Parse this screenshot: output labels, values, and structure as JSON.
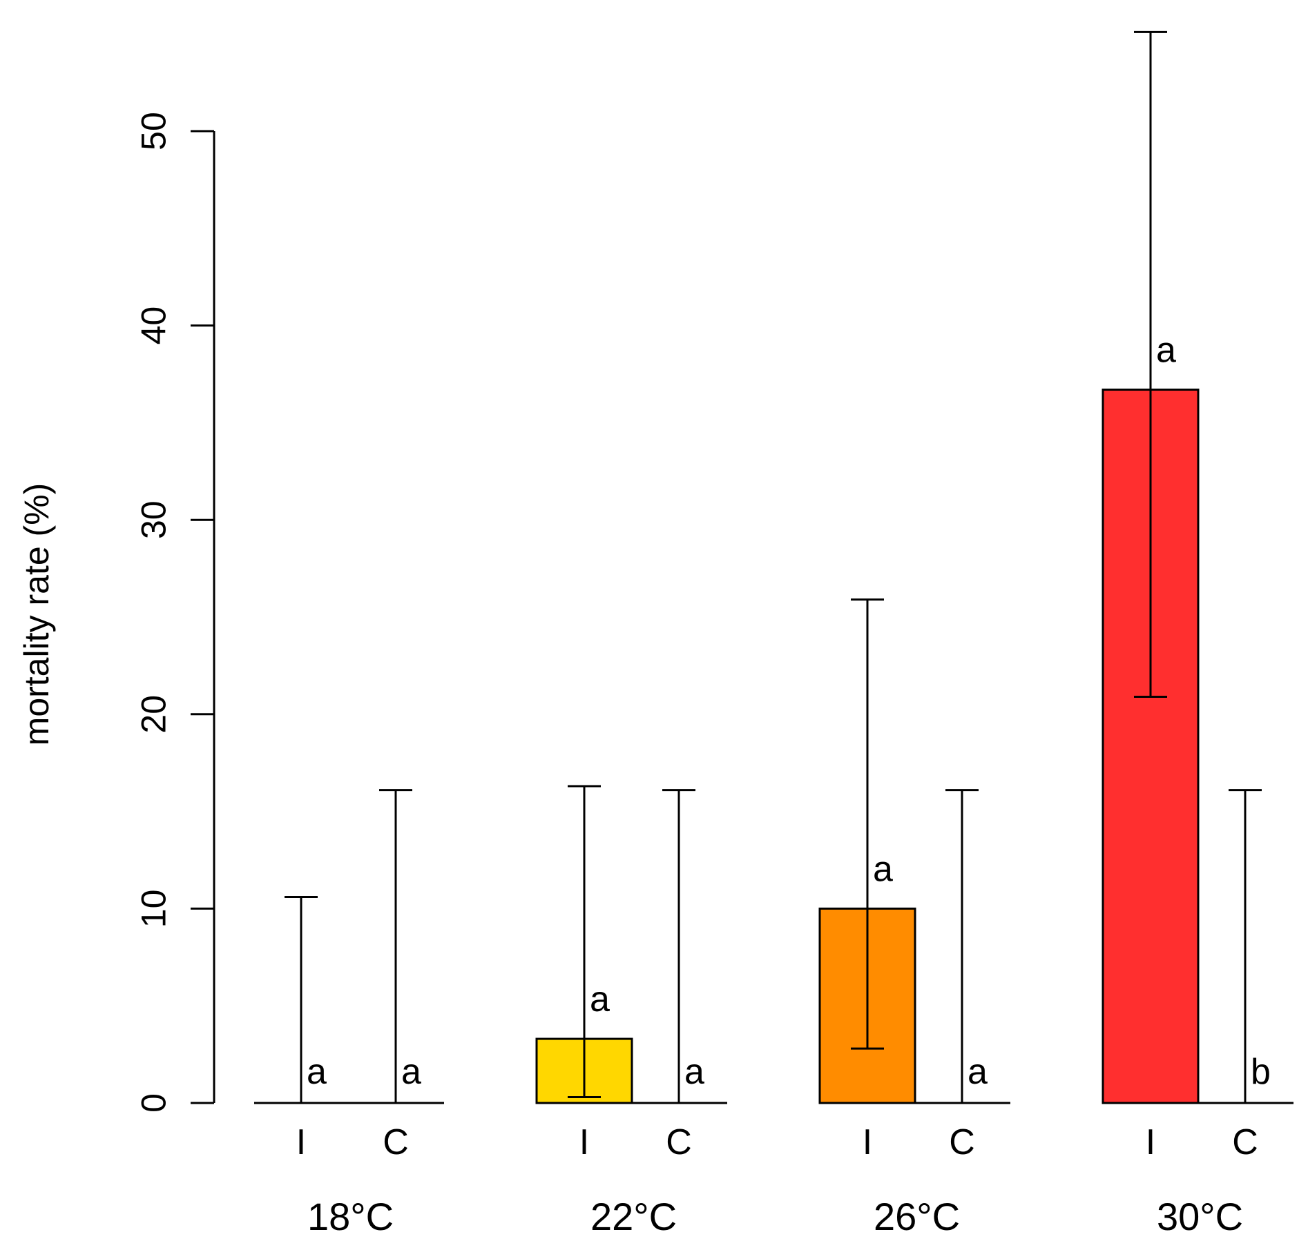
{
  "chart_data": {
    "type": "bar",
    "ylabel": "mortality rate (%)",
    "ylim": [
      0,
      50
    ],
    "y_ticks": [
      0,
      10,
      20,
      30,
      40,
      50
    ],
    "y_tick_labels": [
      "0",
      "10",
      "20",
      "30",
      "40",
      "50"
    ],
    "groups": [
      {
        "temperature": "18°C",
        "bars": [
          {
            "label": "I",
            "value": 0,
            "err_low": 0,
            "err_high": 10.6,
            "sig": "a",
            "color": "#ffffff"
          },
          {
            "label": "C",
            "value": 0,
            "err_low": 0,
            "err_high": 16.1,
            "sig": "a",
            "color": "#ffffff"
          }
        ]
      },
      {
        "temperature": "22°C",
        "bars": [
          {
            "label": "I",
            "value": 3.3,
            "err_low": 0.3,
            "err_high": 16.3,
            "sig": "a",
            "color": "#FFD700"
          },
          {
            "label": "C",
            "value": 0,
            "err_low": 0,
            "err_high": 16.1,
            "sig": "a",
            "color": "#ffffff"
          }
        ]
      },
      {
        "temperature": "26°C",
        "bars": [
          {
            "label": "I",
            "value": 10.0,
            "err_low": 2.8,
            "err_high": 25.9,
            "sig": "a",
            "color": "#FF8C00"
          },
          {
            "label": "C",
            "value": 0,
            "err_low": 0,
            "err_high": 16.1,
            "sig": "a",
            "color": "#ffffff"
          }
        ]
      },
      {
        "temperature": "30°C",
        "bars": [
          {
            "label": "I",
            "value": 36.7,
            "err_low": 20.9,
            "err_high": 55.1,
            "sig": "a",
            "color": "#FF2F2F"
          },
          {
            "label": "C",
            "value": 0,
            "err_low": 0,
            "err_high": 16.1,
            "sig": "b",
            "color": "#ffffff"
          }
        ]
      }
    ]
  }
}
